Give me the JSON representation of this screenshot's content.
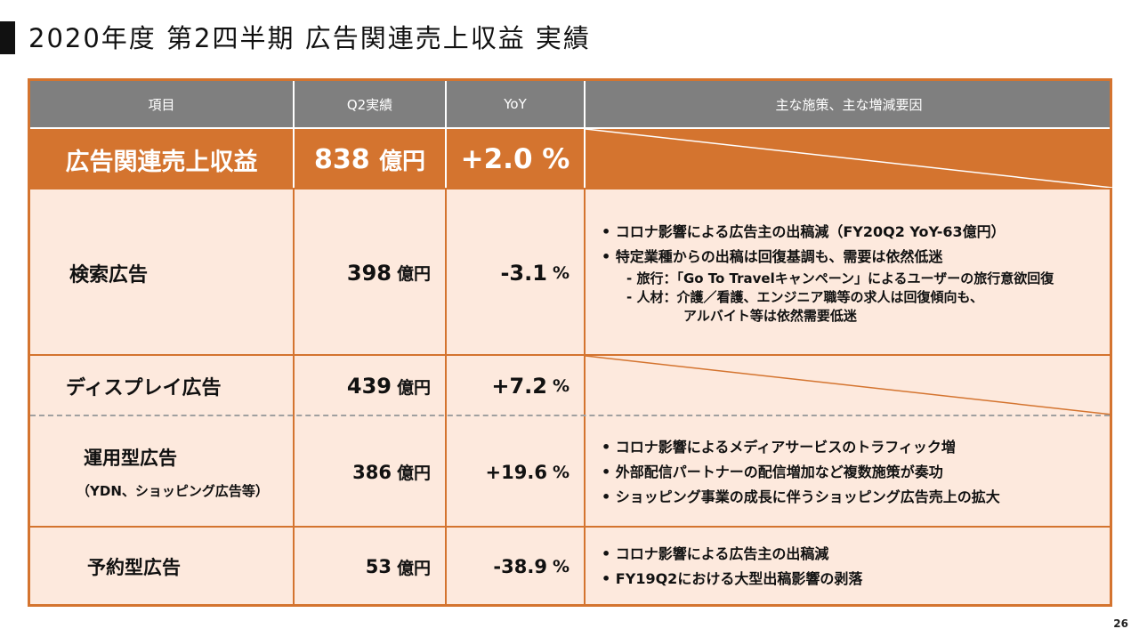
{
  "title": "2020年度 第2四半期 広告関連売上収益 実績",
  "page_number": "26",
  "colors": {
    "accent": "#d4742f",
    "header": "#7f7f7f",
    "fill": "#fde9dd"
  },
  "headers": [
    "項目",
    "Q2実績",
    "YoY",
    "主な施策、主な増減要因"
  ],
  "total": {
    "name": "広告関連売上収益",
    "value": "838",
    "unit": "億円",
    "yoy": "+2.0 %"
  },
  "rows": [
    {
      "name": "検索広告",
      "value": "398",
      "unit": "億円",
      "yoy": "-3.1",
      "pct": "%",
      "notes": [
        "• コロナ影響による広告主の出稿減（FY20Q2 YoY-63億円）",
        "• 特定業種からの出稿は回復基調も、需要は依然低迷"
      ],
      "subnotes": [
        "- 旅行：「Go To Travelキャンペーン」によるユーザーの旅行意欲回復",
        "- 人材：介護／看護、エンジニア職等の求人は回復傾向も、",
        "アルバイト等は依然需要低迷"
      ]
    },
    {
      "name": "ディスプレイ広告",
      "value": "439",
      "unit": "億円",
      "yoy": "+7.2",
      "pct": "%"
    },
    {
      "name": "運用型広告",
      "subname": "（YDN、ショッピング広告等）",
      "value": "386",
      "unit": "億円",
      "yoy": "+19.6",
      "pct": "%",
      "notes": [
        "• コロナ影響によるメディアサービスのトラフィック増",
        "• 外部配信パートナーの配信増加など複数施策が奏功",
        "• ショッピング事業の成長に伴うショッピング広告売上の拡大"
      ]
    },
    {
      "name": "予約型広告",
      "value": "53",
      "unit": "億円",
      "yoy": "-38.9",
      "pct": "%",
      "notes": [
        "• コロナ影響による広告主の出稿減",
        "• FY19Q2における大型出稿影響の剥落"
      ]
    }
  ]
}
